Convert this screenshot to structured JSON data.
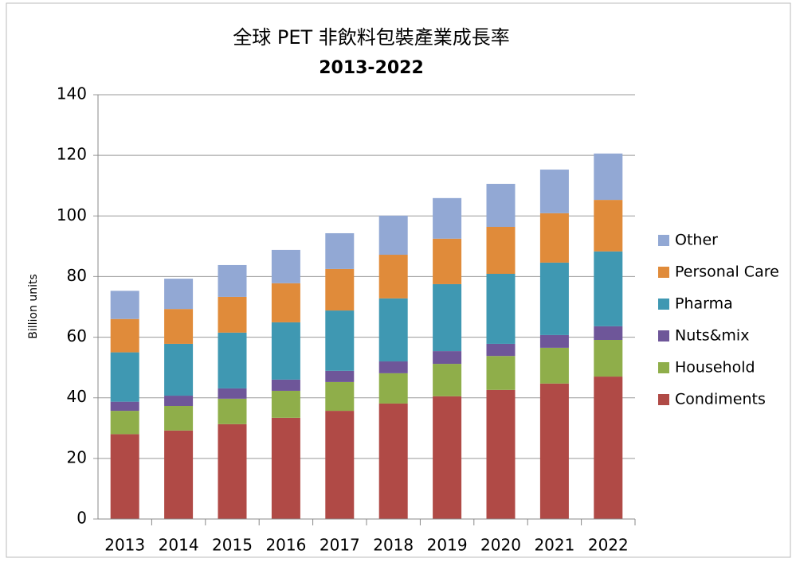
{
  "chart_data": {
    "type": "stacked_bar",
    "title": "全球 PET 非飲料包裝產業成長率",
    "subtitle": "2013-2022",
    "y_label": "Billion units",
    "categories": [
      "2013",
      "2014",
      "2015",
      "2016",
      "2017",
      "2018",
      "2019",
      "2020",
      "2021",
      "2022"
    ],
    "series": [
      {
        "name": "Condiments",
        "color": "#b04a46",
        "values": [
          28,
          29.2,
          31.3,
          33.4,
          35.7,
          38.1,
          40.5,
          42.6,
          44.7,
          47
        ]
      },
      {
        "name": "Household",
        "color": "#8fae4a",
        "values": [
          7.7,
          8.1,
          8.4,
          8.9,
          9.5,
          10,
          10.7,
          11.2,
          11.8,
          12.1
        ]
      },
      {
        "name": "Nuts&mix",
        "color": "#6e5699",
        "values": [
          3,
          3.4,
          3.4,
          3.7,
          3.7,
          3.9,
          4.2,
          4,
          4.2,
          4.5
        ]
      },
      {
        "name": "Pharma",
        "color": "#3f98b2",
        "values": [
          16.3,
          17.1,
          18.4,
          18.9,
          19.9,
          20.8,
          22.1,
          23.1,
          23.9,
          24.7
        ]
      },
      {
        "name": "Personal Care",
        "color": "#e08b3a",
        "values": [
          11,
          11.5,
          11.8,
          12.9,
          13.7,
          14.4,
          15,
          15.5,
          16.3,
          17
        ]
      },
      {
        "name": "Other",
        "color": "#92a8d4",
        "values": [
          9.3,
          10,
          10.5,
          11,
          11.8,
          12.9,
          13.4,
          14.2,
          14.4,
          15.3
        ]
      }
    ],
    "ylim": [
      0,
      140
    ],
    "yticks": [
      0,
      20,
      40,
      60,
      80,
      100,
      120,
      140
    ],
    "grid": true,
    "legend": "right"
  }
}
